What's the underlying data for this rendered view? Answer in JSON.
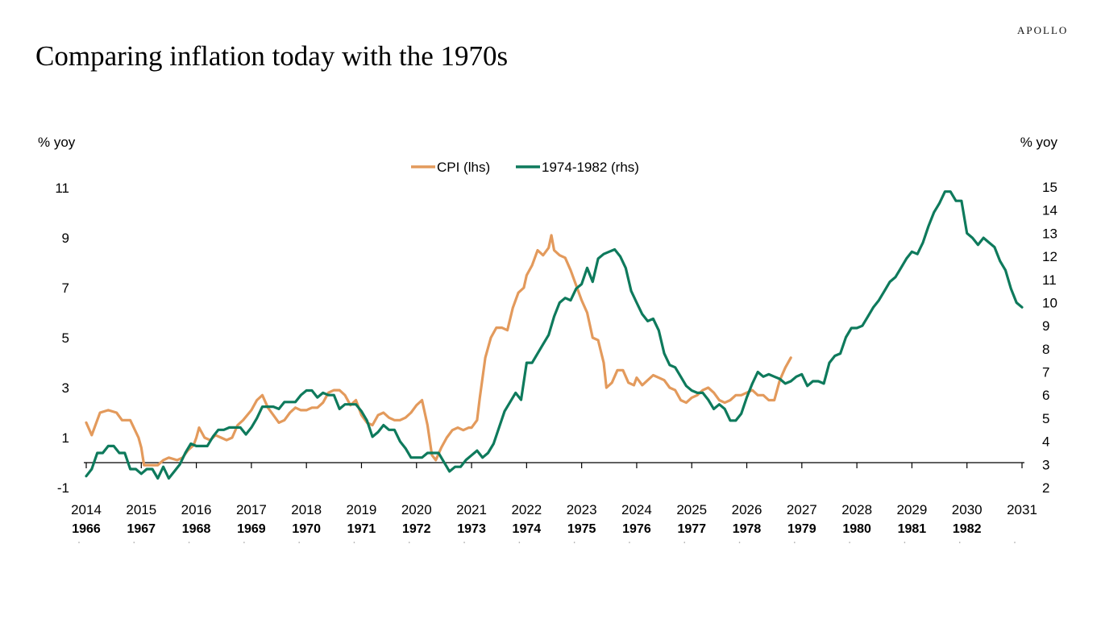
{
  "brand": "APOLLO",
  "chart_data": {
    "type": "line",
    "title": "Comparing inflation today with the 1970s",
    "ylabel_left": "% yoy",
    "ylabel_right": "% yoy",
    "ylim_left": [
      -1,
      11
    ],
    "ylim_right": [
      2,
      15
    ],
    "yticks_left": [
      -1,
      1,
      3,
      5,
      7,
      9,
      11
    ],
    "yticks_right": [
      2,
      3,
      4,
      5,
      6,
      7,
      8,
      9,
      10,
      11,
      12,
      13,
      14,
      15
    ],
    "x_axis_top": [
      "2014",
      "2015",
      "2016",
      "2017",
      "2018",
      "2019",
      "2020",
      "2021",
      "2022",
      "2023",
      "2024",
      "2025",
      "2026",
      "2027",
      "2028",
      "2029",
      "2030",
      "2031"
    ],
    "x_axis_bottom": [
      "1966",
      "1967",
      "1968",
      "1969",
      "1970",
      "1971",
      "1972",
      "1973",
      "1974",
      "1975",
      "1976",
      "1977",
      "1978",
      "1979",
      "1980",
      "1981",
      "1982"
    ],
    "xlim": [
      2014,
      2031
    ],
    "legend_position": "top-center",
    "series": [
      {
        "name": "CPI (lhs)",
        "axis": "left",
        "color": "#E39A5C",
        "points": [
          [
            2014.0,
            1.6
          ],
          [
            2014.1,
            1.1
          ],
          [
            2014.25,
            2.0
          ],
          [
            2014.4,
            2.1
          ],
          [
            2014.55,
            2.0
          ],
          [
            2014.65,
            1.7
          ],
          [
            2014.8,
            1.7
          ],
          [
            2014.95,
            1.0
          ],
          [
            2015.0,
            0.6
          ],
          [
            2015.05,
            -0.1
          ],
          [
            2015.2,
            -0.1
          ],
          [
            2015.3,
            -0.1
          ],
          [
            2015.4,
            0.1
          ],
          [
            2015.5,
            0.2
          ],
          [
            2015.65,
            0.1
          ],
          [
            2015.75,
            0.2
          ],
          [
            2015.85,
            0.5
          ],
          [
            2015.95,
            0.7
          ],
          [
            2016.0,
            1.0
          ],
          [
            2016.05,
            1.4
          ],
          [
            2016.15,
            1.0
          ],
          [
            2016.25,
            0.9
          ],
          [
            2016.35,
            1.1
          ],
          [
            2016.45,
            1.0
          ],
          [
            2016.55,
            0.9
          ],
          [
            2016.65,
            1.0
          ],
          [
            2016.75,
            1.5
          ],
          [
            2016.85,
            1.7
          ],
          [
            2017.0,
            2.1
          ],
          [
            2017.1,
            2.5
          ],
          [
            2017.2,
            2.7
          ],
          [
            2017.3,
            2.2
          ],
          [
            2017.4,
            1.9
          ],
          [
            2017.5,
            1.6
          ],
          [
            2017.6,
            1.7
          ],
          [
            2017.7,
            2.0
          ],
          [
            2017.8,
            2.2
          ],
          [
            2017.9,
            2.1
          ],
          [
            2018.0,
            2.1
          ],
          [
            2018.1,
            2.2
          ],
          [
            2018.2,
            2.2
          ],
          [
            2018.3,
            2.4
          ],
          [
            2018.4,
            2.8
          ],
          [
            2018.5,
            2.9
          ],
          [
            2018.6,
            2.9
          ],
          [
            2018.7,
            2.7
          ],
          [
            2018.8,
            2.3
          ],
          [
            2018.9,
            2.5
          ],
          [
            2019.0,
            1.9
          ],
          [
            2019.1,
            1.6
          ],
          [
            2019.2,
            1.5
          ],
          [
            2019.3,
            1.9
          ],
          [
            2019.4,
            2.0
          ],
          [
            2019.5,
            1.8
          ],
          [
            2019.6,
            1.7
          ],
          [
            2019.7,
            1.7
          ],
          [
            2019.8,
            1.8
          ],
          [
            2019.9,
            2.0
          ],
          [
            2020.0,
            2.3
          ],
          [
            2020.1,
            2.5
          ],
          [
            2020.2,
            1.5
          ],
          [
            2020.28,
            0.3
          ],
          [
            2020.35,
            0.1
          ],
          [
            2020.45,
            0.6
          ],
          [
            2020.55,
            1.0
          ],
          [
            2020.65,
            1.3
          ],
          [
            2020.75,
            1.4
          ],
          [
            2020.85,
            1.3
          ],
          [
            2020.95,
            1.4
          ],
          [
            2021.0,
            1.4
          ],
          [
            2021.1,
            1.7
          ],
          [
            2021.15,
            2.6
          ],
          [
            2021.25,
            4.2
          ],
          [
            2021.35,
            5.0
          ],
          [
            2021.45,
            5.4
          ],
          [
            2021.55,
            5.4
          ],
          [
            2021.65,
            5.3
          ],
          [
            2021.75,
            6.2
          ],
          [
            2021.85,
            6.8
          ],
          [
            2021.95,
            7.0
          ],
          [
            2022.0,
            7.5
          ],
          [
            2022.1,
            7.9
          ],
          [
            2022.2,
            8.5
          ],
          [
            2022.3,
            8.3
          ],
          [
            2022.4,
            8.6
          ],
          [
            2022.45,
            9.1
          ],
          [
            2022.5,
            8.5
          ],
          [
            2022.6,
            8.3
          ],
          [
            2022.7,
            8.2
          ],
          [
            2022.8,
            7.7
          ],
          [
            2022.9,
            7.1
          ],
          [
            2023.0,
            6.5
          ],
          [
            2023.1,
            6.0
          ],
          [
            2023.2,
            5.0
          ],
          [
            2023.3,
            4.9
          ],
          [
            2023.4,
            4.0
          ],
          [
            2023.45,
            3.0
          ],
          [
            2023.55,
            3.2
          ],
          [
            2023.65,
            3.7
          ],
          [
            2023.75,
            3.7
          ],
          [
            2023.85,
            3.2
          ],
          [
            2023.95,
            3.1
          ],
          [
            2024.0,
            3.4
          ],
          [
            2024.1,
            3.1
          ],
          [
            2024.2,
            3.3
          ],
          [
            2024.3,
            3.5
          ],
          [
            2024.4,
            3.4
          ],
          [
            2024.5,
            3.3
          ],
          [
            2024.6,
            3.0
          ],
          [
            2024.7,
            2.9
          ],
          [
            2024.8,
            2.5
          ],
          [
            2024.9,
            2.4
          ],
          [
            2025.0,
            2.6
          ],
          [
            2025.1,
            2.7
          ],
          [
            2025.2,
            2.9
          ],
          [
            2025.3,
            3.0
          ],
          [
            2025.4,
            2.8
          ],
          [
            2025.5,
            2.5
          ],
          [
            2025.6,
            2.4
          ],
          [
            2025.7,
            2.5
          ],
          [
            2025.8,
            2.7
          ],
          [
            2025.9,
            2.7
          ],
          [
            2026.0,
            2.8
          ],
          [
            2026.1,
            2.9
          ],
          [
            2026.2,
            2.7
          ],
          [
            2026.3,
            2.7
          ],
          [
            2026.4,
            2.5
          ],
          [
            2026.5,
            2.5
          ],
          [
            2026.6,
            3.3
          ],
          [
            2026.7,
            3.8
          ],
          [
            2026.8,
            4.2
          ]
        ]
      },
      {
        "name": "1974-1982 (rhs)",
        "axis": "right",
        "color": "#0E7A5C",
        "points": [
          [
            2014.0,
            2.5
          ],
          [
            2014.1,
            2.8
          ],
          [
            2014.2,
            3.5
          ],
          [
            2014.3,
            3.5
          ],
          [
            2014.4,
            3.8
          ],
          [
            2014.5,
            3.8
          ],
          [
            2014.6,
            3.5
          ],
          [
            2014.7,
            3.5
          ],
          [
            2014.8,
            2.8
          ],
          [
            2014.9,
            2.8
          ],
          [
            2015.0,
            2.6
          ],
          [
            2015.1,
            2.8
          ],
          [
            2015.2,
            2.8
          ],
          [
            2015.3,
            2.4
          ],
          [
            2015.4,
            2.9
          ],
          [
            2015.5,
            2.4
          ],
          [
            2015.6,
            2.7
          ],
          [
            2015.7,
            3.0
          ],
          [
            2015.8,
            3.5
          ],
          [
            2015.9,
            3.9
          ],
          [
            2016.0,
            3.8
          ],
          [
            2016.1,
            3.8
          ],
          [
            2016.2,
            3.8
          ],
          [
            2016.3,
            4.2
          ],
          [
            2016.4,
            4.5
          ],
          [
            2016.5,
            4.5
          ],
          [
            2016.6,
            4.6
          ],
          [
            2016.7,
            4.6
          ],
          [
            2016.8,
            4.6
          ],
          [
            2016.9,
            4.3
          ],
          [
            2017.0,
            4.6
          ],
          [
            2017.1,
            5.0
          ],
          [
            2017.2,
            5.5
          ],
          [
            2017.3,
            5.5
          ],
          [
            2017.4,
            5.5
          ],
          [
            2017.5,
            5.4
          ],
          [
            2017.6,
            5.7
          ],
          [
            2017.7,
            5.7
          ],
          [
            2017.8,
            5.7
          ],
          [
            2017.9,
            6.0
          ],
          [
            2018.0,
            6.2
          ],
          [
            2018.1,
            6.2
          ],
          [
            2018.2,
            5.9
          ],
          [
            2018.3,
            6.1
          ],
          [
            2018.4,
            6.0
          ],
          [
            2018.5,
            6.0
          ],
          [
            2018.6,
            5.4
          ],
          [
            2018.7,
            5.6
          ],
          [
            2018.8,
            5.6
          ],
          [
            2018.9,
            5.6
          ],
          [
            2019.0,
            5.3
          ],
          [
            2019.1,
            4.9
          ],
          [
            2019.2,
            4.2
          ],
          [
            2019.3,
            4.4
          ],
          [
            2019.4,
            4.7
          ],
          [
            2019.5,
            4.5
          ],
          [
            2019.6,
            4.5
          ],
          [
            2019.7,
            4.0
          ],
          [
            2019.8,
            3.7
          ],
          [
            2019.9,
            3.3
          ],
          [
            2020.0,
            3.3
          ],
          [
            2020.1,
            3.3
          ],
          [
            2020.2,
            3.5
          ],
          [
            2020.3,
            3.5
          ],
          [
            2020.4,
            3.5
          ],
          [
            2020.5,
            3.1
          ],
          [
            2020.6,
            2.7
          ],
          [
            2020.7,
            2.9
          ],
          [
            2020.8,
            2.9
          ],
          [
            2020.9,
            3.2
          ],
          [
            2021.0,
            3.4
          ],
          [
            2021.1,
            3.6
          ],
          [
            2021.2,
            3.3
          ],
          [
            2021.3,
            3.5
          ],
          [
            2021.4,
            3.9
          ],
          [
            2021.5,
            4.6
          ],
          [
            2021.6,
            5.3
          ],
          [
            2021.7,
            5.7
          ],
          [
            2021.8,
            6.1
          ],
          [
            2021.9,
            5.8
          ],
          [
            2022.0,
            7.4
          ],
          [
            2022.1,
            7.4
          ],
          [
            2022.2,
            7.8
          ],
          [
            2022.3,
            8.2
          ],
          [
            2022.4,
            8.6
          ],
          [
            2022.5,
            9.4
          ],
          [
            2022.6,
            10.0
          ],
          [
            2022.7,
            10.2
          ],
          [
            2022.8,
            10.1
          ],
          [
            2022.9,
            10.6
          ],
          [
            2023.0,
            10.8
          ],
          [
            2023.1,
            11.5
          ],
          [
            2023.2,
            10.9
          ],
          [
            2023.3,
            11.9
          ],
          [
            2023.4,
            12.1
          ],
          [
            2023.5,
            12.2
          ],
          [
            2023.6,
            12.3
          ],
          [
            2023.7,
            12.0
          ],
          [
            2023.8,
            11.5
          ],
          [
            2023.9,
            10.5
          ],
          [
            2024.0,
            10.0
          ],
          [
            2024.1,
            9.5
          ],
          [
            2024.2,
            9.2
          ],
          [
            2024.3,
            9.3
          ],
          [
            2024.4,
            8.8
          ],
          [
            2024.5,
            7.8
          ],
          [
            2024.6,
            7.3
          ],
          [
            2024.7,
            7.2
          ],
          [
            2024.8,
            6.8
          ],
          [
            2024.9,
            6.4
          ],
          [
            2025.0,
            6.2
          ],
          [
            2025.1,
            6.1
          ],
          [
            2025.2,
            6.1
          ],
          [
            2025.3,
            5.8
          ],
          [
            2025.4,
            5.4
          ],
          [
            2025.5,
            5.6
          ],
          [
            2025.6,
            5.4
          ],
          [
            2025.7,
            4.9
          ],
          [
            2025.8,
            4.9
          ],
          [
            2025.9,
            5.2
          ],
          [
            2026.0,
            5.9
          ],
          [
            2026.1,
            6.5
          ],
          [
            2026.2,
            7.0
          ],
          [
            2026.3,
            6.8
          ],
          [
            2026.4,
            6.9
          ],
          [
            2026.5,
            6.8
          ],
          [
            2026.6,
            6.7
          ],
          [
            2026.7,
            6.5
          ],
          [
            2026.8,
            6.6
          ],
          [
            2026.9,
            6.8
          ],
          [
            2027.0,
            6.9
          ],
          [
            2027.1,
            6.4
          ],
          [
            2027.2,
            6.6
          ],
          [
            2027.3,
            6.6
          ],
          [
            2027.4,
            6.5
          ],
          [
            2027.5,
            7.4
          ],
          [
            2027.6,
            7.7
          ],
          [
            2027.7,
            7.8
          ],
          [
            2027.8,
            8.5
          ],
          [
            2027.9,
            8.9
          ],
          [
            2028.0,
            8.9
          ],
          [
            2028.1,
            9.0
          ],
          [
            2028.2,
            9.4
          ],
          [
            2028.3,
            9.8
          ],
          [
            2028.4,
            10.1
          ],
          [
            2028.5,
            10.5
          ],
          [
            2028.6,
            10.9
          ],
          [
            2028.7,
            11.1
          ],
          [
            2028.8,
            11.5
          ],
          [
            2028.9,
            11.9
          ],
          [
            2029.0,
            12.2
          ],
          [
            2029.1,
            12.1
          ],
          [
            2029.2,
            12.6
          ],
          [
            2029.3,
            13.3
          ],
          [
            2029.4,
            13.9
          ],
          [
            2029.5,
            14.3
          ],
          [
            2029.6,
            14.8
          ],
          [
            2029.7,
            14.8
          ],
          [
            2029.8,
            14.4
          ],
          [
            2029.9,
            14.4
          ],
          [
            2030.0,
            13.0
          ],
          [
            2030.1,
            12.8
          ],
          [
            2030.2,
            12.5
          ],
          [
            2030.3,
            12.8
          ],
          [
            2030.4,
            12.6
          ],
          [
            2030.5,
            12.4
          ],
          [
            2030.6,
            11.8
          ],
          [
            2030.7,
            11.4
          ],
          [
            2030.8,
            10.6
          ],
          [
            2030.9,
            10.0
          ],
          [
            2031.0,
            9.8
          ]
        ]
      }
    ]
  }
}
